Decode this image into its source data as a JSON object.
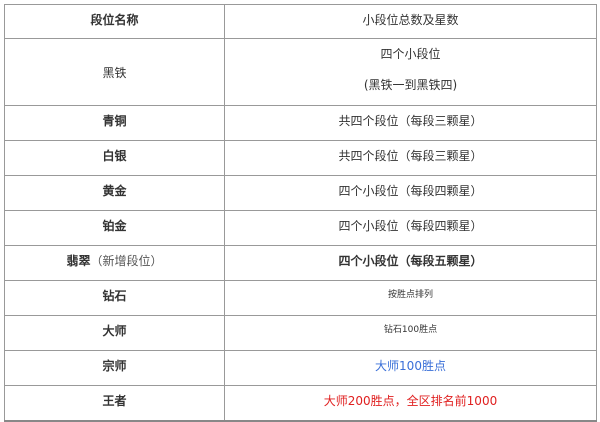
{
  "table": {
    "headers": [
      "段位名称",
      "小段位总数及星数"
    ],
    "rows": [
      {
        "name": "黑铁",
        "name_note": "",
        "value": "四个小段位",
        "value_line2": "(黑铁一到黑铁四)",
        "style": "tall"
      },
      {
        "name": "青铜",
        "name_note": "",
        "value": "共四个段位（每段三颗星）",
        "style": "normal"
      },
      {
        "name": "白银",
        "name_note": "",
        "value": "共四个段位（每段三颗星）",
        "style": "normal"
      },
      {
        "name": "黄金",
        "name_note": "",
        "value": "四个小段位（每段四颗星）",
        "style": "normal"
      },
      {
        "name": "铂金",
        "name_note": "",
        "value": "四个小段位（每段四颗星）",
        "style": "normal"
      },
      {
        "name": "翡翠",
        "name_note": "（新增段位）",
        "value": "四个小段位（每段五颗星）",
        "style": "bold"
      },
      {
        "name": "钻石",
        "name_note": "",
        "value": "按胜点排列",
        "style": "small"
      },
      {
        "name": "大师",
        "name_note": "",
        "value": "钻石100胜点",
        "style": "small"
      },
      {
        "name": "宗师",
        "name_note": "",
        "value": "大师100胜点",
        "style": "blue"
      },
      {
        "name": "王者",
        "name_note": "",
        "value": "大师200胜点，全区排名前1000",
        "style": "red"
      }
    ]
  },
  "colors": {
    "blue_text": "#3a6fd8",
    "red_text": "#e02020",
    "border": "#999999"
  }
}
